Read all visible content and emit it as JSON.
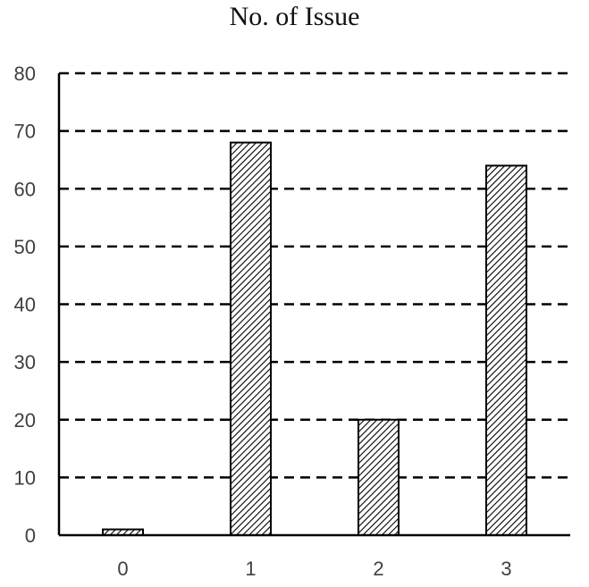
{
  "chart_data": {
    "type": "bar",
    "title": "No. of Issue",
    "categories": [
      "0",
      "1",
      "2",
      "3"
    ],
    "values": [
      1,
      68,
      20,
      64
    ],
    "ylim": [
      0,
      80
    ],
    "yticks": [
      0,
      10,
      20,
      30,
      40,
      50,
      60,
      70,
      80
    ],
    "xlabel": "",
    "ylabel": "",
    "grid": true,
    "gridline_style": "dashed",
    "bar_fill": "diagonal-hatch",
    "colors": {
      "bar_stroke": "#000000",
      "hatch": "#000000",
      "grid": "#000000",
      "text": "#404040"
    }
  }
}
